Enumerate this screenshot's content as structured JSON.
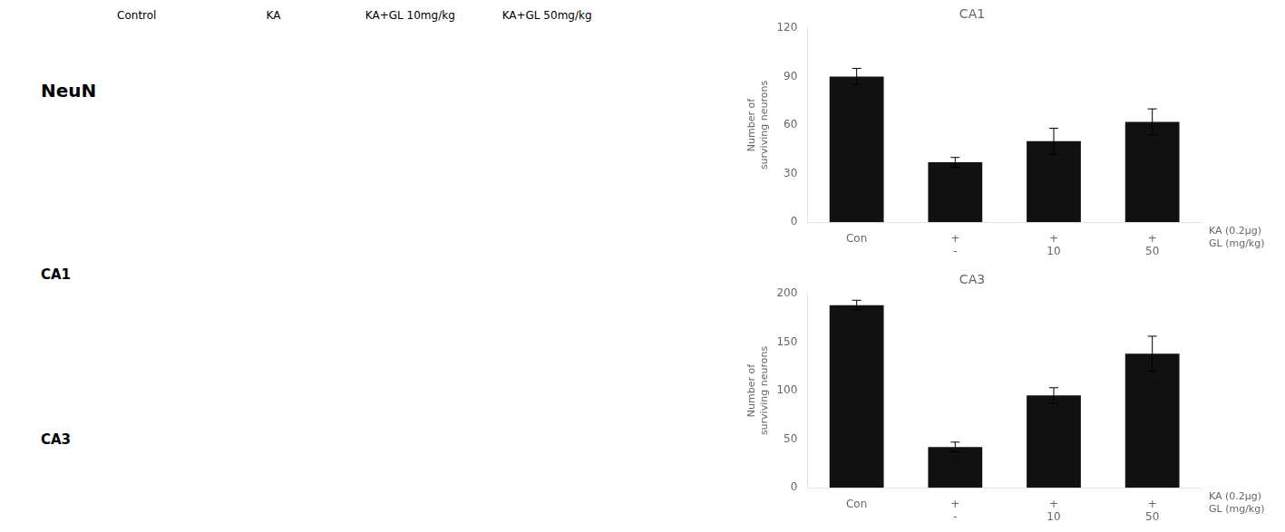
{
  "chart_data": [
    {
      "type": "bar",
      "title": "CA1",
      "categories": [
        "Con",
        "+\n-",
        "+\n10",
        "+\n50"
      ],
      "values": [
        90,
        37,
        50,
        62
      ],
      "errors": [
        5,
        3,
        8,
        8
      ],
      "color": "#111111",
      "ylim": [
        0,
        120
      ],
      "yticks": [
        0,
        30,
        60,
        90,
        120
      ],
      "ylabel": "Number of\nsurviving neurons",
      "xlabel": "KA (0.2μg)\nGL (mg/kg)",
      "grid": false,
      "annotations": {
        "heading": "NeuN",
        "rows": [
          "CA1",
          "CA3"
        ],
        "columns": [
          "Control",
          "KA",
          "KA+GL 10mg/kg",
          "KA+GL 50mg/kg"
        ]
      }
    },
    {
      "type": "bar",
      "title": "CA3",
      "categories": [
        "Con",
        "+\n-",
        "+\n10",
        "+\n50"
      ],
      "values": [
        188,
        42,
        95,
        138
      ],
      "errors": [
        5,
        5,
        8,
        18
      ],
      "color": "#111111",
      "ylim": [
        0,
        200
      ],
      "yticks": [
        0,
        50,
        100,
        150,
        200
      ],
      "ylabel": "Number of\nsurviving neurons",
      "xlabel": "KA (0.2μg)\nGL (mg/kg)",
      "grid": false
    }
  ]
}
